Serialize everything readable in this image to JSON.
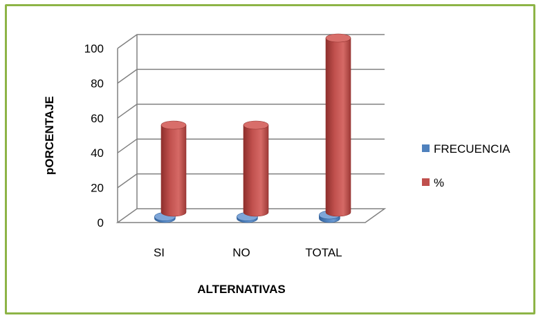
{
  "chart_data": {
    "type": "bar",
    "categories": [
      "SI",
      "NO",
      "TOTAL"
    ],
    "series": [
      {
        "name": "FRECUENCIA",
        "values": [
          1,
          1,
          2
        ]
      },
      {
        "name": "%",
        "values": [
          50,
          50,
          100
        ]
      }
    ],
    "title": "",
    "xlabel": "ALTERNATIVAS",
    "ylabel": "pORCENTAJE",
    "ylim": [
      0,
      100
    ],
    "yticks": [
      0,
      20,
      40,
      60,
      80,
      100
    ],
    "grid": true,
    "legend": "right",
    "colors": {
      "FRECUENCIA": "#4f81bd",
      "%": "#c0504d"
    }
  }
}
